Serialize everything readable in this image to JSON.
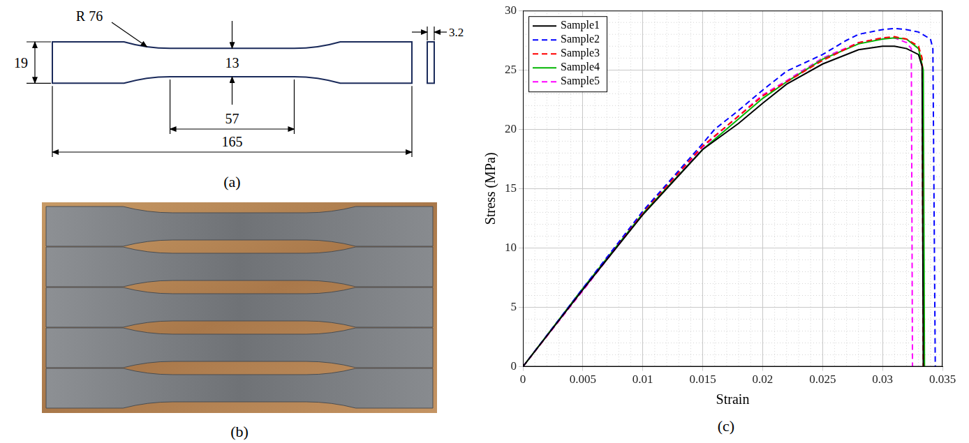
{
  "panels": {
    "a": {
      "label": "(a)",
      "dimensions": {
        "overall_length": 165,
        "grip_width": 19,
        "reduced_width": 13,
        "reduced_length": 57,
        "fillet_radius": {
          "value": 76,
          "label": "R 76"
        },
        "thickness": 3.2
      }
    },
    "b": {
      "label": "(b)",
      "specimens": 5
    },
    "c": {
      "label": "(c)"
    }
  },
  "chart_data": {
    "type": "line",
    "x_label": "Strain",
    "y_label": "Stress (MPa)",
    "xlim": [
      0,
      0.035
    ],
    "xticks": [
      0,
      0.005,
      0.01,
      0.015,
      0.02,
      0.025,
      0.03,
      0.035
    ],
    "ylim": [
      0,
      30
    ],
    "yticks": [
      0,
      5,
      10,
      15,
      20,
      25,
      30
    ],
    "grid": true,
    "legend": "upper left",
    "series": [
      {
        "name": "Sample1",
        "color": "#000000",
        "line_style": "solid",
        "x": [
          0,
          0.005,
          0.01,
          0.015,
          0.018,
          0.02,
          0.022,
          0.025,
          0.028,
          0.03,
          0.031,
          0.032,
          0.033,
          0.0333,
          0.0334
        ],
        "values": [
          0,
          6.5,
          12.8,
          18.3,
          20.5,
          22.2,
          23.8,
          25.5,
          26.7,
          27.0,
          27.0,
          26.8,
          26.3,
          25.3,
          0
        ]
      },
      {
        "name": "Sample2",
        "color": "#0000ff",
        "line_style": "dashed",
        "x": [
          0,
          0.005,
          0.01,
          0.015,
          0.016,
          0.018,
          0.02,
          0.022,
          0.025,
          0.027,
          0.028,
          0.03,
          0.031,
          0.032,
          0.033,
          0.034,
          0.0342,
          0.0344
        ],
        "values": [
          0,
          6.6,
          13.1,
          18.8,
          20.0,
          21.6,
          23.3,
          24.9,
          26.3,
          27.5,
          28.0,
          28.4,
          28.5,
          28.4,
          28.2,
          27.6,
          26.8,
          0
        ]
      },
      {
        "name": "Sample3",
        "color": "#ff0000",
        "line_style": "dashed",
        "x": [
          0,
          0.005,
          0.01,
          0.015,
          0.02,
          0.022,
          0.025,
          0.028,
          0.03,
          0.031,
          0.032,
          0.033,
          0.0333,
          0.0334
        ],
        "values": [
          0,
          6.5,
          13.0,
          18.6,
          22.8,
          24.0,
          25.8,
          27.3,
          27.7,
          27.8,
          27.6,
          27.0,
          26.0,
          0
        ]
      },
      {
        "name": "Sample4",
        "color": "#00b400",
        "line_style": "solid",
        "x": [
          0,
          0.005,
          0.01,
          0.015,
          0.02,
          0.022,
          0.025,
          0.028,
          0.03,
          0.031,
          0.032,
          0.033,
          0.0334,
          0.0335
        ],
        "values": [
          0,
          6.6,
          12.9,
          18.3,
          22.6,
          24.0,
          25.9,
          27.2,
          27.6,
          27.7,
          27.6,
          26.8,
          25.0,
          0
        ]
      },
      {
        "name": "Sample5",
        "color": "#ff00ff",
        "line_style": "dashed",
        "x": [
          0,
          0.005,
          0.01,
          0.015,
          0.02,
          0.022,
          0.025,
          0.028,
          0.03,
          0.031,
          0.032,
          0.0324,
          0.0325
        ],
        "values": [
          0,
          6.4,
          12.9,
          18.5,
          22.9,
          24.1,
          26.0,
          27.3,
          27.7,
          27.7,
          27.3,
          26.8,
          0
        ]
      }
    ]
  }
}
